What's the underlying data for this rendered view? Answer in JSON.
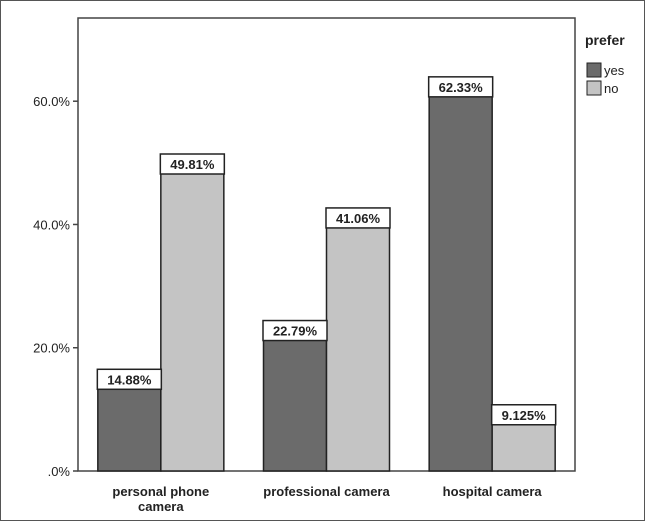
{
  "chart_data": {
    "type": "bar",
    "categories": [
      "personal phone camera",
      "professional camera",
      "hospital camera"
    ],
    "category_label_lines": [
      [
        "personal phone",
        "camera"
      ],
      [
        "professional camera"
      ],
      [
        "hospital camera"
      ]
    ],
    "series": [
      {
        "name": "yes",
        "values": [
          14.88,
          22.79,
          62.33
        ],
        "labels": [
          "14.88%",
          "22.79%",
          "62.33%"
        ],
        "color": "#6b6b6b"
      },
      {
        "name": "no",
        "values": [
          49.81,
          41.06,
          9.125
        ],
        "labels": [
          "49.81%",
          "41.06%",
          "9.125%"
        ],
        "color": "#c4c4c4"
      }
    ],
    "yticks": [
      0,
      20,
      40,
      60
    ],
    "ytick_labels": [
      ".0%",
      "20.0%",
      "40.0%",
      "60.0%"
    ],
    "ylim": [
      0,
      73.5
    ],
    "legend_title": "prefer",
    "legend_position": "right",
    "grid": false
  }
}
